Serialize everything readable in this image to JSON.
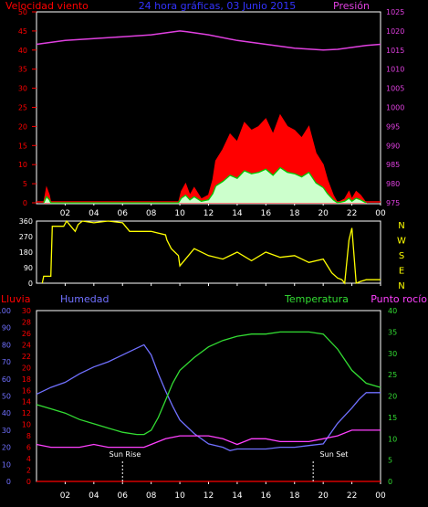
{
  "top": {
    "title_left": "Velocidad viento",
    "title_center": "24 hora gráficas, 03 Junio 2015",
    "title_right": "Presión",
    "left_ticks": [
      "0",
      "5",
      "10",
      "15",
      "20",
      "25",
      "30",
      "35",
      "40",
      "45",
      "50"
    ],
    "right_ticks": [
      "975",
      "980",
      "985",
      "990",
      "995",
      "1000",
      "1005",
      "1010",
      "1015",
      "1020",
      "1025"
    ]
  },
  "middle": {
    "left_ticks": [
      "0",
      "90",
      "180",
      "270",
      "360"
    ],
    "compass": [
      "N",
      "W",
      "S",
      "E",
      "N"
    ]
  },
  "bottom": {
    "label_rain": "Lluvia",
    "label_humidity": "Humedad",
    "label_temperature": "Temperatura",
    "label_dewpoint": "Punto rocío",
    "humidity_ticks": [
      "0",
      "10",
      "20",
      "30",
      "40",
      "50",
      "60",
      "70",
      "80",
      "90",
      "100"
    ],
    "rain_ticks": [
      "0",
      "2",
      "4",
      "6",
      "8",
      "10",
      "12",
      "14",
      "16",
      "18",
      "20",
      "22",
      "24",
      "26",
      "28",
      "30"
    ],
    "temp_ticks": [
      "0",
      "5",
      "10",
      "15",
      "20",
      "25",
      "30",
      "35",
      "40"
    ],
    "sunrise_label": "Sun Rise",
    "sunset_label": "Sun Set"
  },
  "x_ticks": [
    "02",
    "04",
    "06",
    "08",
    "10",
    "12",
    "14",
    "16",
    "18",
    "20",
    "22",
    "00"
  ],
  "colors": {
    "wind": "#ff0000",
    "gust": "#ff0000",
    "avg_wind": "#00cc00",
    "pressure": "#e040e0",
    "direction": "#ffff00",
    "humidity": "#7070ff",
    "temperature": "#33dd33",
    "dewpoint": "#ff40ff",
    "rain": "#ff0000"
  },
  "chart_data": [
    {
      "type": "area",
      "title": "24 hora gráficas, 03 Junio 2015",
      "x_unit": "hour",
      "xlim": [
        0,
        24
      ],
      "series": [
        {
          "name": "Velocidad viento",
          "axis": "left",
          "ylim": [
            0,
            50
          ],
          "x": [
            0.5,
            0.7,
            0.9,
            1.0,
            9.9,
            10.1,
            10.4,
            10.7,
            11.0,
            11.5,
            12.0,
            12.3,
            12.5,
            13.0,
            13.5,
            14.0,
            14.5,
            15.0,
            15.5,
            16.0,
            16.5,
            17.0,
            17.5,
            18.0,
            18.5,
            19.0,
            19.5,
            20.0,
            20.3,
            20.7,
            21.0,
            21.5,
            21.8,
            22.0,
            22.3,
            22.6,
            23.0
          ],
          "values": [
            0,
            4,
            2,
            0,
            0,
            3,
            5,
            2,
            4,
            1,
            2,
            6,
            11,
            14,
            18,
            16,
            21,
            19,
            20,
            22,
            18,
            23,
            20,
            19,
            17,
            20,
            13,
            10,
            6,
            2,
            0,
            1,
            3,
            1,
            3,
            2,
            0
          ]
        },
        {
          "name": "Presión",
          "axis": "right",
          "ylim": [
            975,
            1025
          ],
          "x": [
            0,
            2,
            4,
            6,
            8,
            10,
            10.5,
            12,
            14,
            16,
            18,
            20,
            21,
            22,
            23,
            24
          ],
          "values": [
            1016.5,
            1017.5,
            1018,
            1018.5,
            1019,
            1020,
            1019.8,
            1019,
            1017.5,
            1016.5,
            1015.5,
            1015,
            1015.2,
            1015.7,
            1016.2,
            1016.5
          ]
        }
      ]
    },
    {
      "type": "line",
      "xlim": [
        0,
        24
      ],
      "ylim": [
        0,
        360
      ],
      "x": [
        0.4,
        0.5,
        1.0,
        1.1,
        1.9,
        2.1,
        2.3,
        2.7,
        2.9,
        3.2,
        4.0,
        5.0,
        6.0,
        6.5,
        7.5,
        8.0,
        9.0,
        9.1,
        9.4,
        9.9,
        10.0,
        11.0,
        12.0,
        13.0,
        14.0,
        15.0,
        16.0,
        17.0,
        18.0,
        19.0,
        20.0,
        20.3,
        20.6,
        21.0,
        21.3,
        21.5,
        21.8,
        22.0,
        22.3,
        22.6,
        23.0,
        23.5,
        24.0
      ],
      "values": [
        0,
        40,
        40,
        330,
        330,
        360,
        340,
        300,
        340,
        360,
        350,
        360,
        350,
        300,
        300,
        300,
        280,
        250,
        200,
        160,
        100,
        200,
        160,
        140,
        180,
        130,
        180,
        150,
        160,
        120,
        140,
        100,
        60,
        30,
        20,
        0,
        250,
        320,
        0,
        10,
        20,
        20,
        20
      ]
    },
    {
      "type": "line",
      "xlim": [
        0,
        24
      ],
      "series": [
        {
          "name": "Humedad",
          "axis": "humidity",
          "ylim": [
            0,
            100
          ],
          "x": [
            0,
            1,
            2,
            3,
            4,
            5,
            6,
            7,
            7.5,
            8,
            8.5,
            9,
            9.5,
            10,
            11,
            12,
            13,
            13.5,
            14,
            15,
            16,
            17,
            18,
            19,
            20,
            20.5,
            21,
            22,
            22.5,
            23,
            24
          ],
          "values": [
            51,
            55,
            58,
            63,
            67,
            70,
            74,
            78,
            80,
            74,
            63,
            53,
            44,
            36,
            28,
            22,
            20,
            18,
            19,
            19,
            19,
            20,
            20,
            21,
            22,
            28,
            34,
            43,
            48,
            52,
            52
          ]
        },
        {
          "name": "Temperatura",
          "axis": "temperature",
          "ylim": [
            0,
            40
          ],
          "x": [
            0,
            1,
            2,
            3,
            4,
            5,
            6,
            7,
            7.5,
            8,
            8.5,
            9,
            9.5,
            10,
            11,
            12,
            13,
            14,
            15,
            16,
            17,
            18,
            19,
            20,
            21,
            22,
            23,
            24
          ],
          "values": [
            18,
            17,
            16,
            14.5,
            13.5,
            12.5,
            11.5,
            11,
            11,
            12,
            15,
            19,
            23,
            26,
            29,
            31.5,
            33,
            34,
            34.5,
            34.5,
            35,
            35,
            35,
            34.5,
            31,
            26,
            23,
            22
          ]
        },
        {
          "name": "Punto rocío",
          "axis": "rain",
          "ylim": [
            0,
            30
          ],
          "x": [
            0,
            1,
            2,
            3,
            4,
            5,
            6,
            7,
            7.5,
            8,
            9,
            10,
            11,
            12,
            13,
            14,
            15,
            16,
            17,
            18,
            19,
            20,
            21,
            22,
            23,
            24
          ],
          "values": [
            6.5,
            6,
            6,
            6,
            6.5,
            6,
            6,
            6,
            6,
            6.5,
            7.5,
            8,
            8,
            8,
            7.5,
            6.5,
            7.5,
            7.5,
            7,
            7,
            7,
            7.5,
            8,
            9,
            9,
            9
          ]
        },
        {
          "name": "Lluvia",
          "axis": "rain",
          "ylim": [
            0,
            30
          ],
          "x": [
            0,
            24
          ],
          "values": [
            0,
            0
          ]
        }
      ]
    }
  ]
}
